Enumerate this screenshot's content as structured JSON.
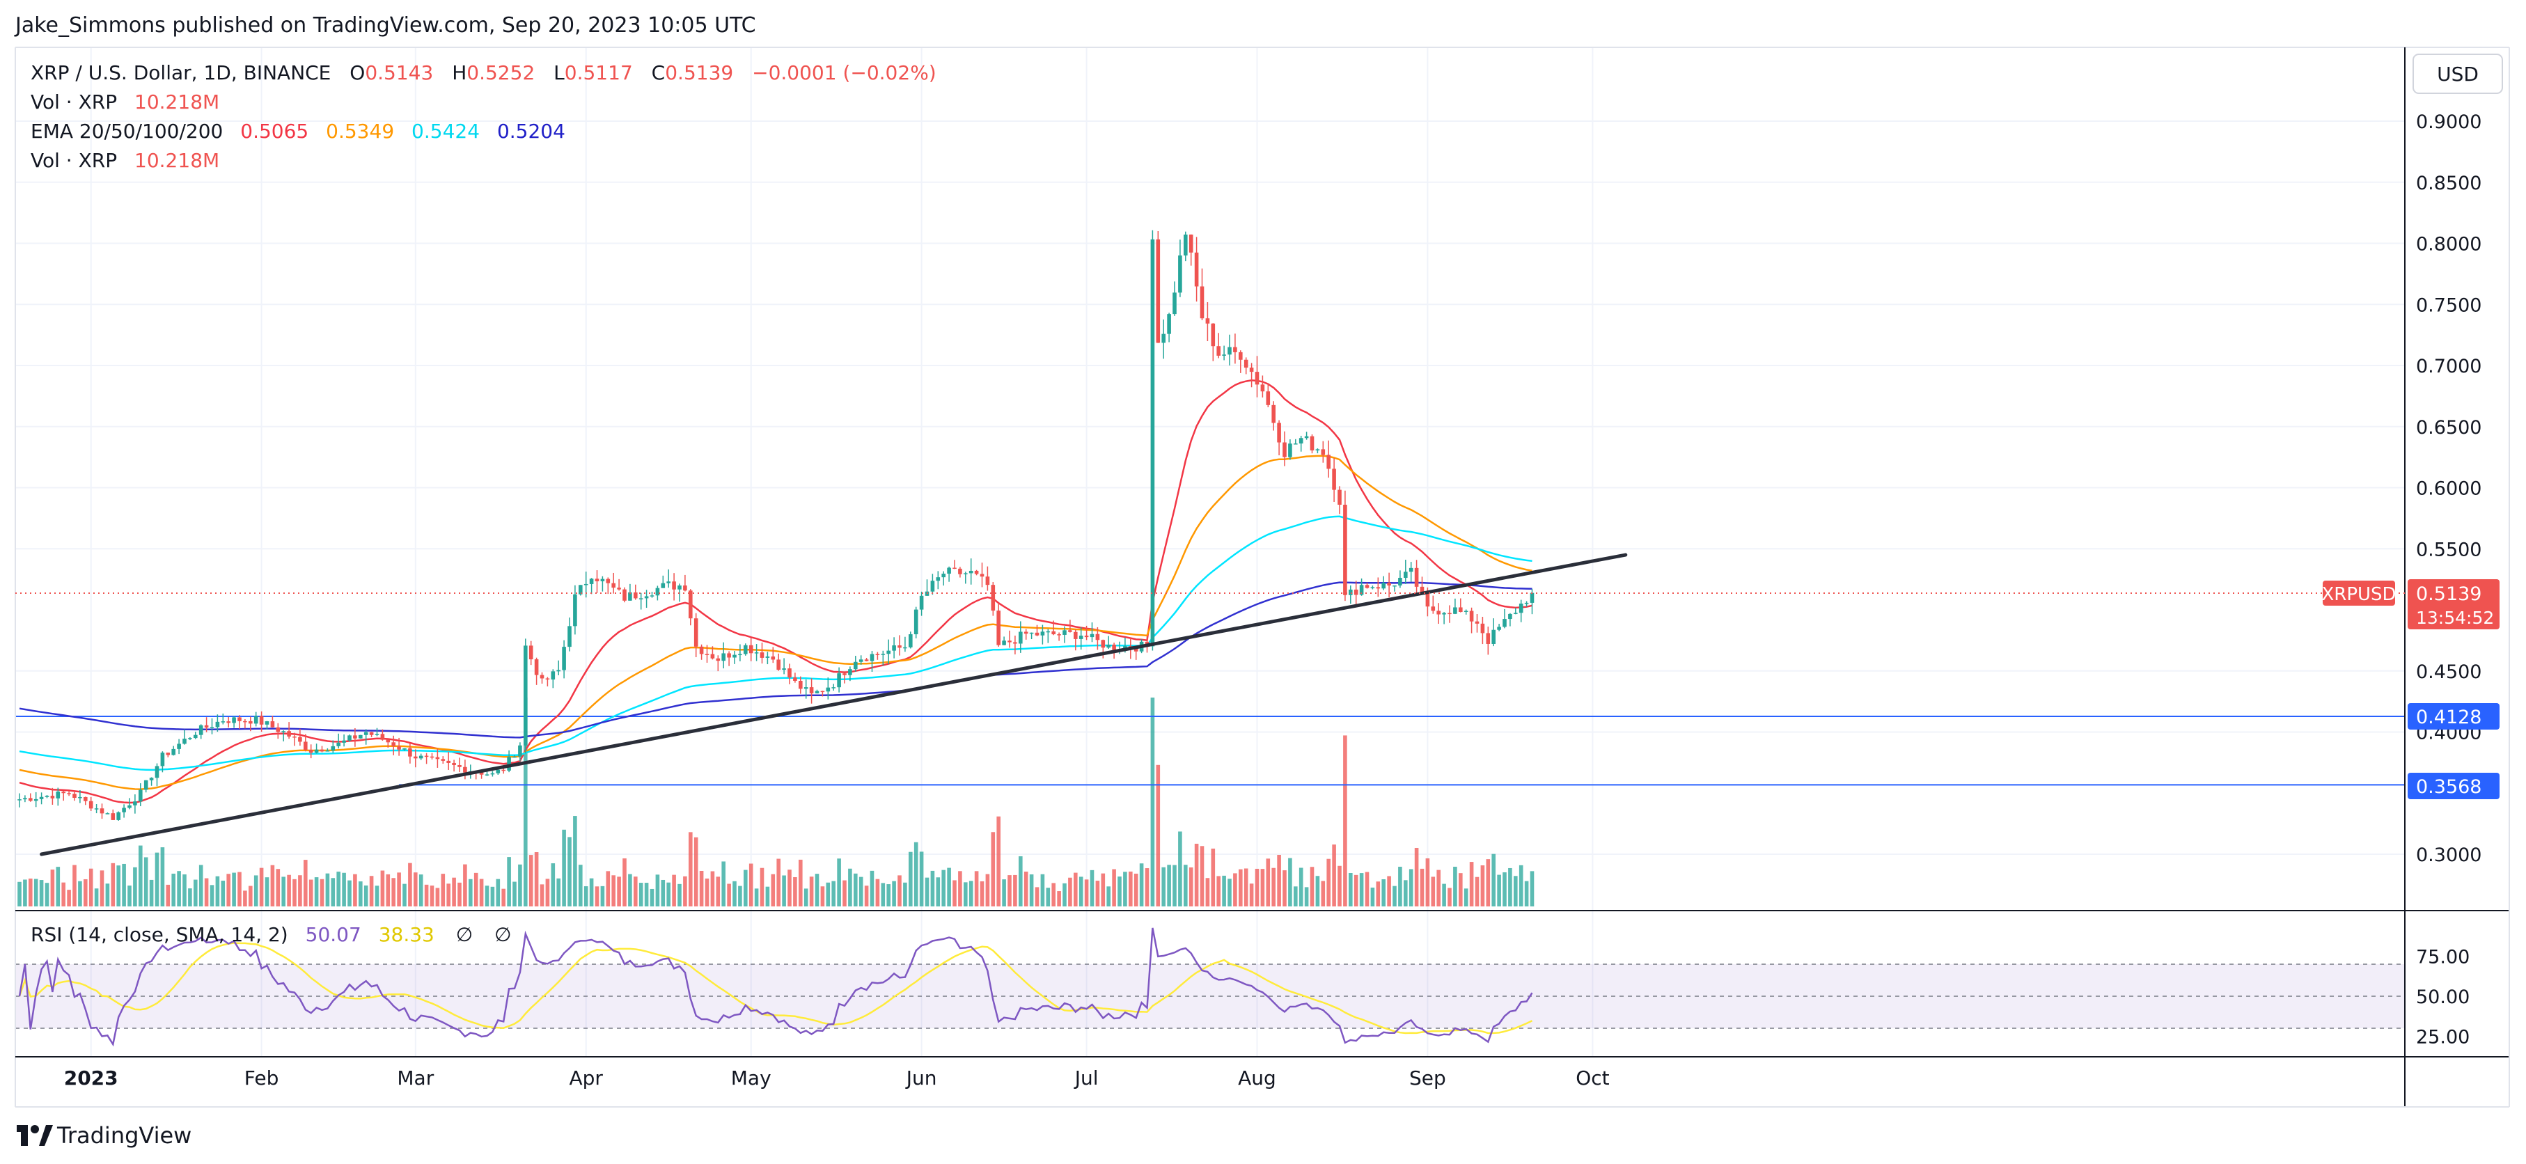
{
  "header": {
    "published": "Jake_Simmons published on TradingView.com, Sep 20, 2023 10:05 UTC",
    "currency": "USD"
  },
  "legend": {
    "symbol": "XRP / U.S. Dollar, 1D, BINANCE",
    "o_label": "O",
    "o": "0.5143",
    "h_label": "H",
    "h": "0.5252",
    "l_label": "L",
    "l": "0.5117",
    "c_label": "C",
    "c": "0.5139",
    "change": "−0.0001 (−0.02%)",
    "vol1_label": "Vol · XRP",
    "vol1": "10.218M",
    "ema_label": "EMA 20/50/100/200",
    "ema20": "0.5065",
    "ema50": "0.5349",
    "ema100": "0.5424",
    "ema200": "0.5204",
    "vol2_label": "Vol · XRP",
    "vol2": "10.218M",
    "rsi_label": "RSI (14, close, SMA, 14, 2)",
    "rsi": "50.07",
    "rsi_sma": "38.33",
    "rsi_x1": "∅",
    "rsi_x2": "∅"
  },
  "price_tag": {
    "symbol": "XRPUSD",
    "price": "0.5139",
    "countdown": "13:54:52"
  },
  "level_tags": [
    "0.4128",
    "0.3568"
  ],
  "footer": {
    "brand": "TradingView"
  },
  "colors": {
    "up": "#26a69a",
    "down": "#ef5350",
    "ema20": "#f23645",
    "ema50": "#ff9800",
    "ema100": "#00e5ff",
    "ema200": "#3030d0",
    "rsi": "#7e57c2",
    "rsi_sma": "#ffeb3b",
    "level": "#2962ff",
    "trendline": "#2a2e39"
  },
  "chart_data": [
    {
      "type": "candlestick",
      "title": "XRP / U.S. Dollar, 1D, BINANCE",
      "x_ticks": [
        "2023",
        "Feb",
        "Mar",
        "Apr",
        "May",
        "Jun",
        "Jul",
        "Aug",
        "Sep",
        "Oct"
      ],
      "y_ticks": [
        "0.3000",
        "0.4000",
        "0.4500",
        "0.5500",
        "0.6000",
        "0.6500",
        "0.7000",
        "0.7500",
        "0.8000",
        "0.8500",
        "0.9000"
      ],
      "ylim": [
        0.27,
        0.93
      ],
      "anchors": [
        [
          "2022-12-19",
          0.345
        ],
        [
          "2022-12-28",
          0.35
        ],
        [
          "2023-01-01",
          0.34
        ],
        [
          "2023-01-05",
          0.33
        ],
        [
          "2023-01-10",
          0.35
        ],
        [
          "2023-01-14",
          0.38
        ],
        [
          "2023-01-20",
          0.4
        ],
        [
          "2023-01-25",
          0.41
        ],
        [
          "2023-01-31",
          0.41
        ],
        [
          "2023-02-05",
          0.4
        ],
        [
          "2023-02-10",
          0.385
        ],
        [
          "2023-02-15",
          0.39
        ],
        [
          "2023-02-20",
          0.4
        ],
        [
          "2023-02-25",
          0.39
        ],
        [
          "2023-03-01",
          0.38
        ],
        [
          "2023-03-05",
          0.375
        ],
        [
          "2023-03-10",
          0.37
        ],
        [
          "2023-03-15",
          0.365
        ],
        [
          "2023-03-17",
          0.37
        ],
        [
          "2023-03-20",
          0.39
        ],
        [
          "2023-03-21",
          0.47
        ],
        [
          "2023-03-24",
          0.44
        ],
        [
          "2023-03-27",
          0.45
        ],
        [
          "2023-03-30",
          0.51
        ],
        [
          "2023-04-02",
          0.53
        ],
        [
          "2023-04-05",
          0.52
        ],
        [
          "2023-04-08",
          0.51
        ],
        [
          "2023-04-12",
          0.515
        ],
        [
          "2023-04-16",
          0.52
        ],
        [
          "2023-04-19",
          0.52
        ],
        [
          "2023-04-21",
          0.47
        ],
        [
          "2023-04-25",
          0.46
        ],
        [
          "2023-04-30",
          0.47
        ],
        [
          "2023-05-05",
          0.46
        ],
        [
          "2023-05-09",
          0.44
        ],
        [
          "2023-05-12",
          0.43
        ],
        [
          "2023-05-16",
          0.44
        ],
        [
          "2023-05-20",
          0.46
        ],
        [
          "2023-05-25",
          0.465
        ],
        [
          "2023-05-29",
          0.47
        ],
        [
          "2023-06-01",
          0.51
        ],
        [
          "2023-06-05",
          0.53
        ],
        [
          "2023-06-10",
          0.53
        ],
        [
          "2023-06-13",
          0.52
        ],
        [
          "2023-06-15",
          0.47
        ],
        [
          "2023-06-20",
          0.48
        ],
        [
          "2023-06-25",
          0.48
        ],
        [
          "2023-06-30",
          0.48
        ],
        [
          "2023-07-05",
          0.47
        ],
        [
          "2023-07-12",
          0.47
        ],
        [
          "2023-07-13",
          0.81
        ],
        [
          "2023-07-14",
          0.72
        ],
        [
          "2023-07-16",
          0.74
        ],
        [
          "2023-07-19",
          0.81
        ],
        [
          "2023-07-22",
          0.74
        ],
        [
          "2023-07-25",
          0.71
        ],
        [
          "2023-07-29",
          0.71
        ],
        [
          "2023-08-02",
          0.68
        ],
        [
          "2023-08-06",
          0.63
        ],
        [
          "2023-08-09",
          0.64
        ],
        [
          "2023-08-13",
          0.63
        ],
        [
          "2023-08-16",
          0.59
        ],
        [
          "2023-08-17",
          0.51
        ],
        [
          "2023-08-20",
          0.52
        ],
        [
          "2023-08-25",
          0.52
        ],
        [
          "2023-08-29",
          0.53
        ],
        [
          "2023-09-01",
          0.5
        ],
        [
          "2023-09-06",
          0.5
        ],
        [
          "2023-09-10",
          0.49
        ],
        [
          "2023-09-12",
          0.475
        ],
        [
          "2023-09-15",
          0.49
        ],
        [
          "2023-09-20",
          0.5139
        ]
      ],
      "levels": [
        0.4128,
        0.3568
      ],
      "trendline": [
        [
          "2022-12-23",
          0.3
        ],
        [
          "2023-10-07",
          0.545
        ]
      ],
      "last_price": 0.5139,
      "ema_series": [
        "EMA 20",
        "EMA 50",
        "EMA 100",
        "EMA 200"
      ]
    },
    {
      "type": "line",
      "title": "RSI (14, close, SMA, 14, 2)",
      "y_ticks": [
        "25.00",
        "50.00",
        "75.00"
      ],
      "ylim": [
        20,
        95
      ],
      "bands": [
        70,
        50,
        30
      ],
      "last_rsi": 50.07,
      "last_sma": 38.33
    }
  ]
}
